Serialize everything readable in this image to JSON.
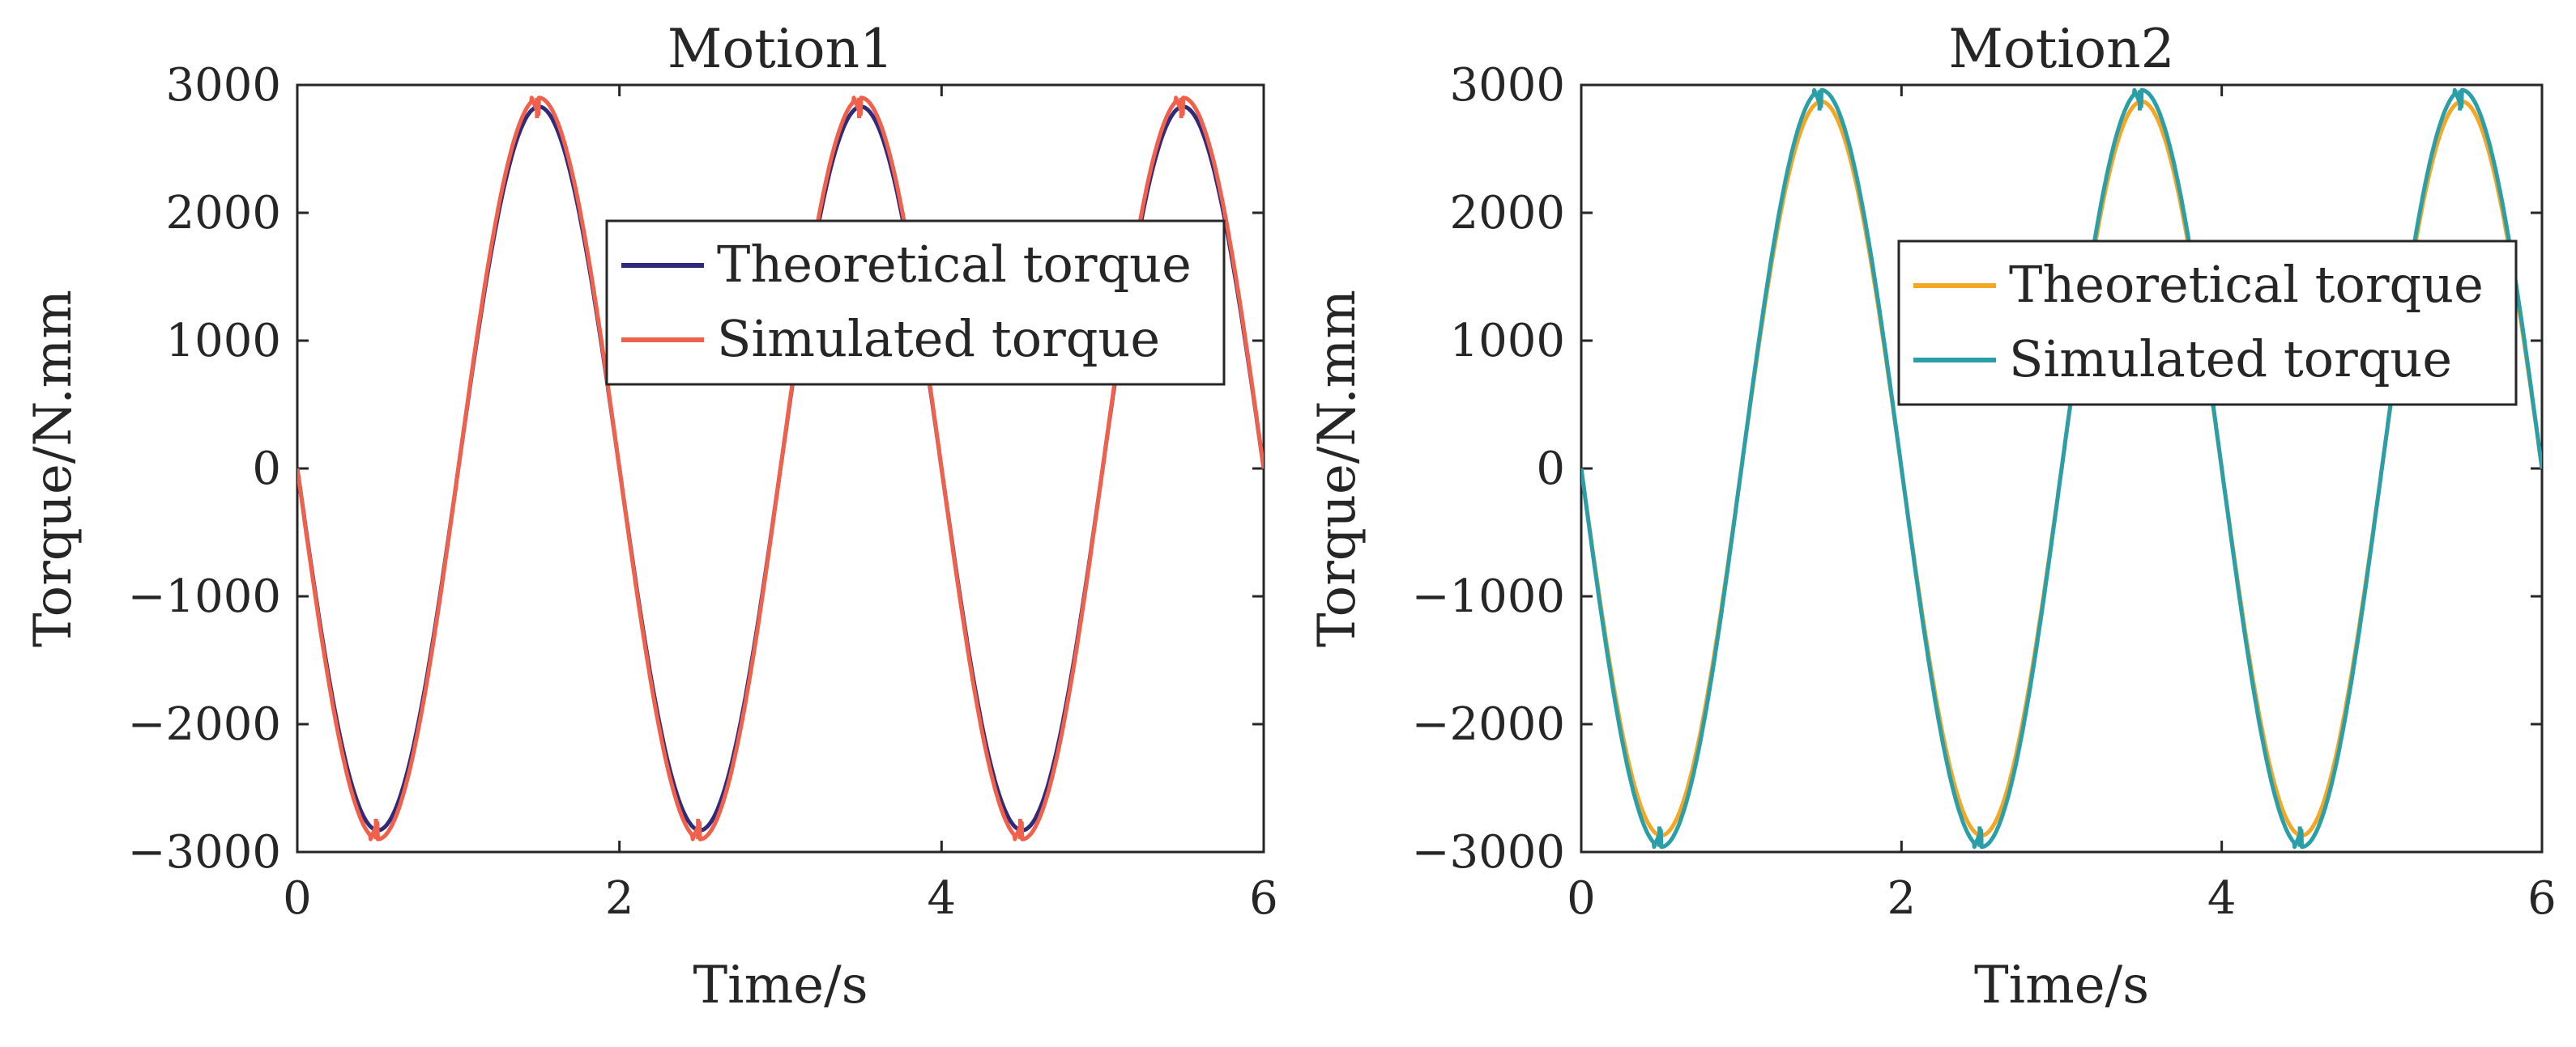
{
  "figure": {
    "description_panels": 2
  },
  "chart_data": [
    {
      "type": "line",
      "title": "Motion1",
      "xlabel": "Time/s",
      "ylabel": "Torque/N.mm",
      "xlim": [
        0,
        6
      ],
      "ylim": [
        -3000,
        3000
      ],
      "xticks": [
        0,
        2,
        4,
        6
      ],
      "yticks": [
        -3000,
        -2000,
        -1000,
        0,
        1000,
        2000,
        3000
      ],
      "xtick_labels": [
        "0",
        "2",
        "4",
        "6"
      ],
      "ytick_labels": [
        "−3000",
        "−2000",
        "−1000",
        "0",
        "1000",
        "2000",
        "3000"
      ],
      "legend_position": "upper-right-inside",
      "series": [
        {
          "name": "Theoretical torque",
          "color": "#2f2a7a",
          "model": "sine",
          "amplitude": 2830,
          "period": 2,
          "phase_sign": -1,
          "x": [
            0,
            0.5,
            1.0,
            1.5,
            2.0,
            2.5,
            3.0,
            3.5,
            4.0,
            4.5,
            5.0,
            5.5,
            6.0
          ],
          "y": [
            0,
            -2830,
            0,
            2830,
            0,
            -2830,
            0,
            2830,
            0,
            -2830,
            0,
            2830,
            0
          ]
        },
        {
          "name": "Simulated torque",
          "color": "#f0604a",
          "model": "sine-with-peak-notches",
          "amplitude": 2900,
          "notch_low": 2740,
          "period": 2,
          "phase_sign": -1,
          "x": [
            0,
            0.45,
            0.5,
            0.55,
            1.0,
            1.45,
            1.5,
            1.55,
            2.0,
            2.45,
            2.5,
            2.55,
            3.0,
            3.45,
            3.5,
            3.55,
            4.0,
            4.45,
            4.5,
            4.55,
            5.0,
            5.45,
            5.5,
            5.55,
            6.0
          ],
          "y": [
            0,
            -2860,
            -2740,
            -2900,
            0,
            2860,
            2740,
            2900,
            0,
            -2860,
            -2740,
            -2900,
            0,
            2860,
            2740,
            2900,
            0,
            -2860,
            -2740,
            -2900,
            0,
            2860,
            2740,
            2900,
            0
          ]
        }
      ]
    },
    {
      "type": "line",
      "title": "Motion2",
      "xlabel": "Time/s",
      "ylabel": "Torque/N.mm",
      "xlim": [
        0,
        6
      ],
      "ylim": [
        -3000,
        3000
      ],
      "xticks": [
        0,
        2,
        4,
        6
      ],
      "yticks": [
        -3000,
        -2000,
        -1000,
        0,
        1000,
        2000,
        3000
      ],
      "xtick_labels": [
        "0",
        "2",
        "4",
        "6"
      ],
      "ytick_labels": [
        "−3000",
        "−2000",
        "−1000",
        "0",
        "1000",
        "2000",
        "3000"
      ],
      "legend_position": "upper-right-inside",
      "series": [
        {
          "name": "Theoretical torque",
          "color": "#f5a623",
          "model": "sine",
          "amplitude": 2870,
          "period": 2,
          "phase_sign": -1,
          "x": [
            0,
            0.5,
            1.0,
            1.5,
            2.0,
            2.5,
            3.0,
            3.5,
            4.0,
            4.5,
            5.0,
            5.5,
            6.0
          ],
          "y": [
            0,
            -2870,
            0,
            2870,
            0,
            -2870,
            0,
            2870,
            0,
            -2870,
            0,
            2870,
            0
          ]
        },
        {
          "name": "Simulated torque",
          "color": "#2a9fa8",
          "model": "sine-with-peak-notches",
          "amplitude": 2960,
          "notch_low": 2800,
          "period": 2,
          "phase_sign": -1,
          "x": [
            0,
            0.45,
            0.5,
            0.55,
            1.0,
            1.45,
            1.5,
            1.55,
            2.0,
            2.45,
            2.5,
            2.55,
            3.0,
            3.45,
            3.5,
            3.55,
            4.0,
            4.45,
            4.5,
            4.55,
            5.0,
            5.45,
            5.5,
            5.55,
            6.0
          ],
          "y": [
            0,
            -2900,
            -2800,
            -2960,
            0,
            2900,
            2800,
            2960,
            0,
            -2900,
            -2800,
            -2960,
            0,
            2900,
            2800,
            2960,
            0,
            -2900,
            -2800,
            -2960,
            0,
            2900,
            2800,
            2960,
            0
          ]
        }
      ]
    }
  ]
}
